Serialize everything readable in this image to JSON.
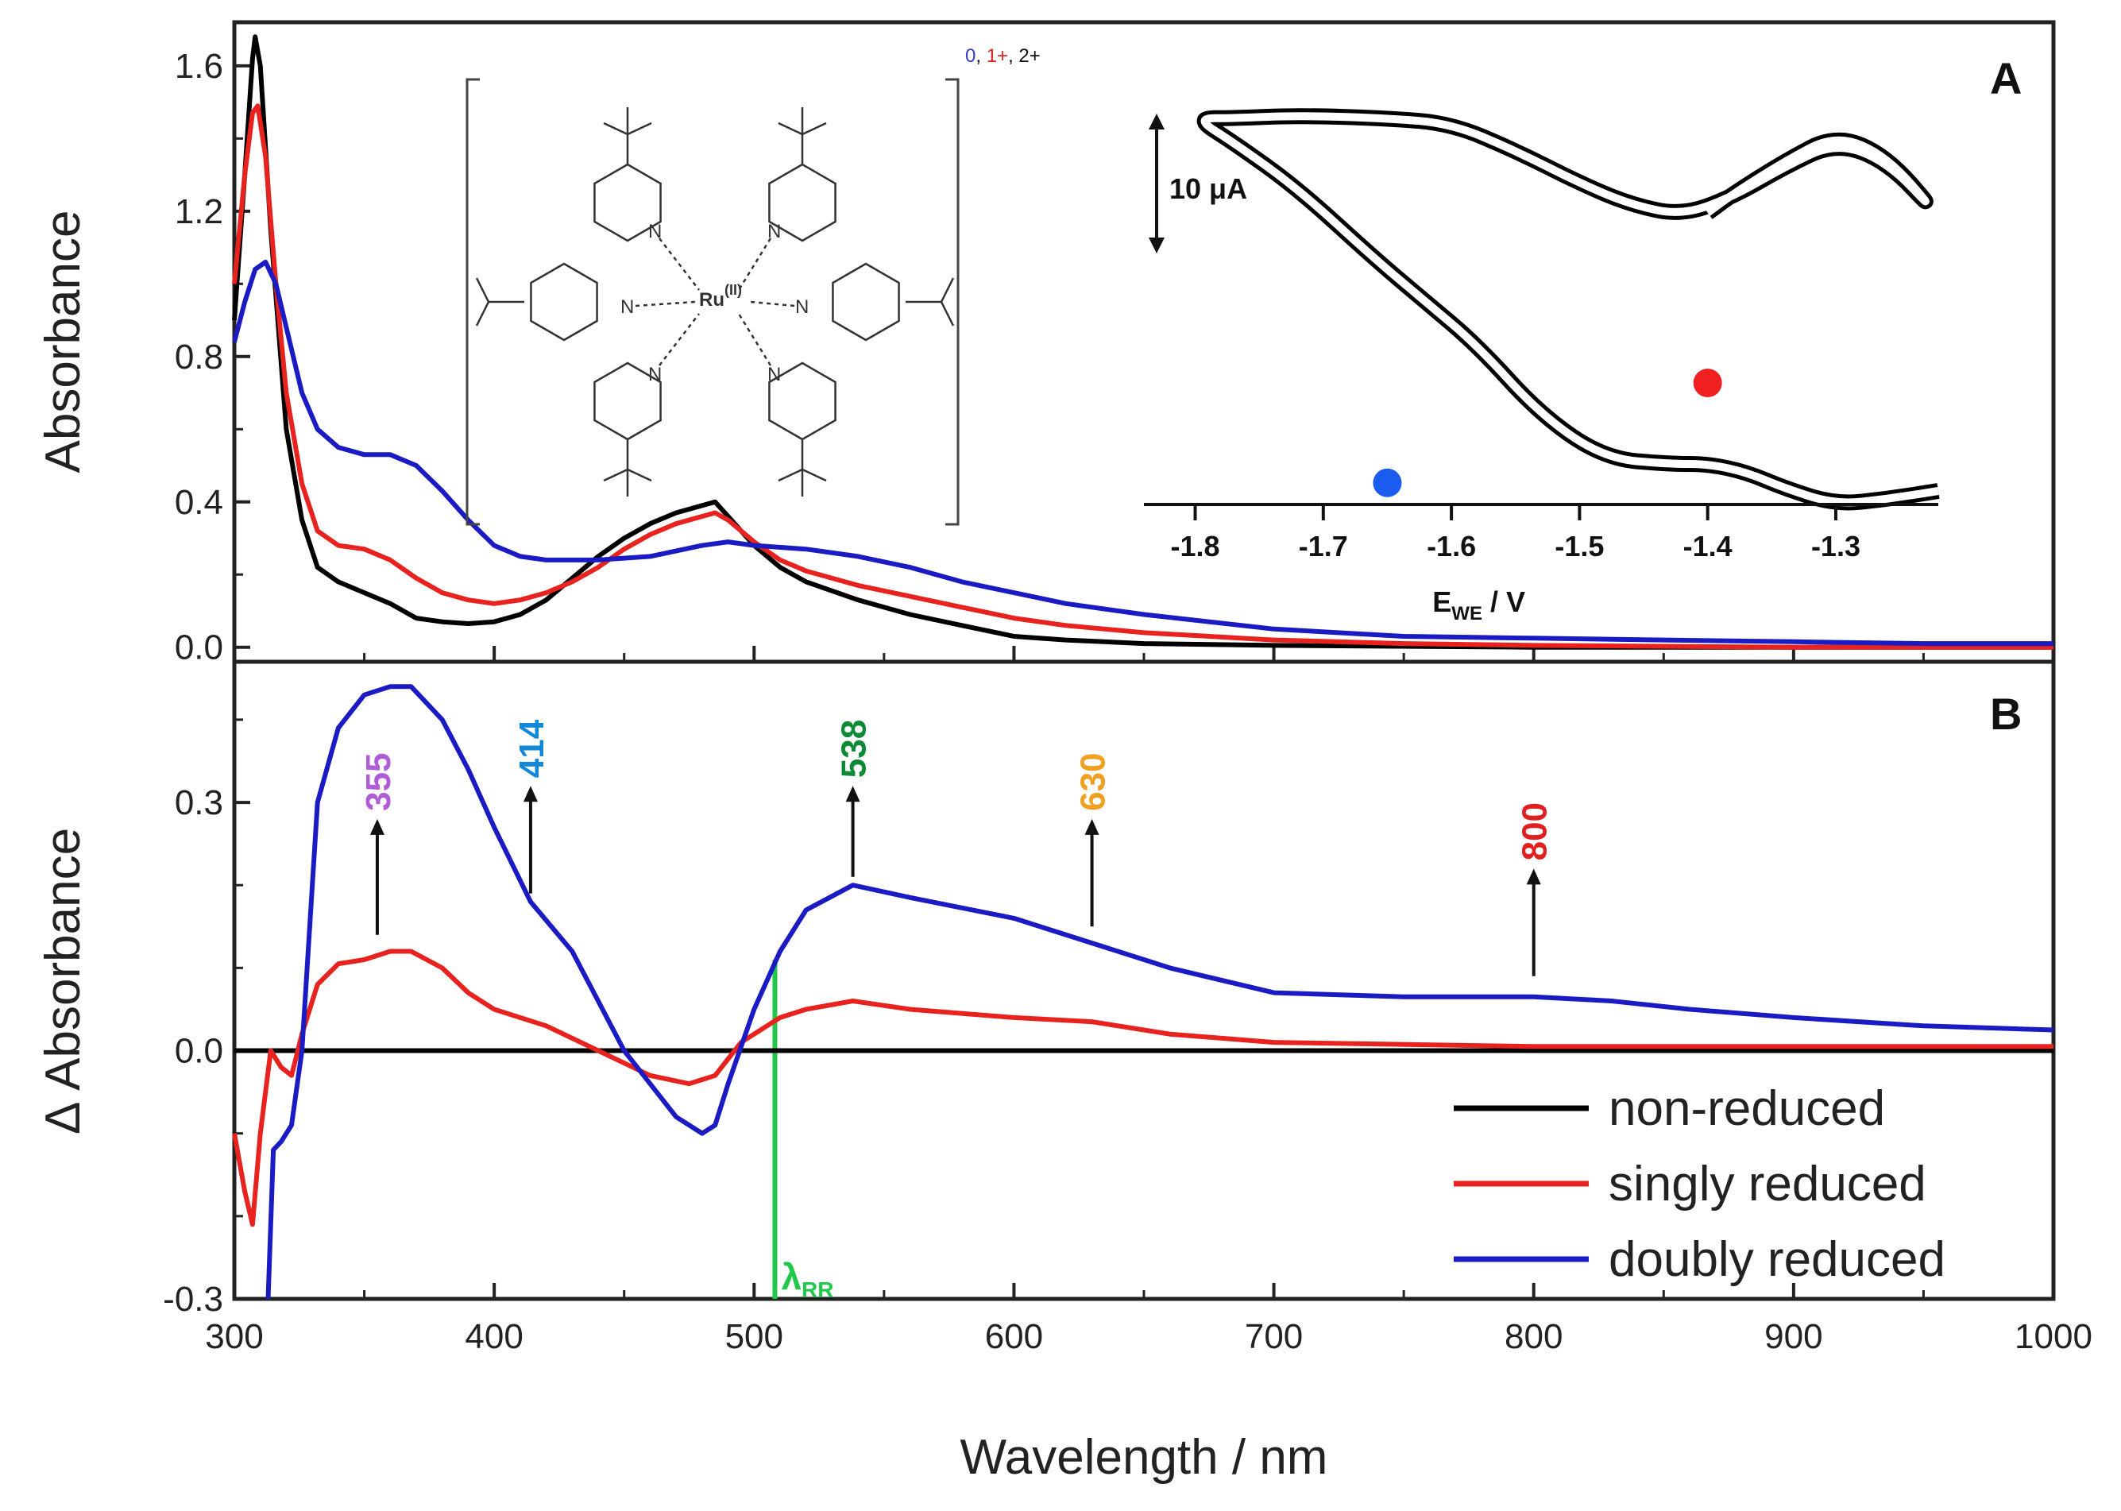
{
  "chart_data": [
    {
      "panel": "A",
      "type": "line",
      "panel_label": "A",
      "ylabel": "Absorbance",
      "xlabel": "Wavelength / nm",
      "xlim": [
        300,
        1000
      ],
      "ylim": [
        -0.04,
        1.72
      ],
      "x_ticks": [
        "300",
        "400",
        "500",
        "600",
        "700",
        "800",
        "900",
        "1000"
      ],
      "y_ticks": [
        "0.0",
        "0.4",
        "0.8",
        "1.2",
        "1.6"
      ],
      "y_tick_values": [
        0.0,
        0.4,
        0.8,
        1.2,
        1.6
      ],
      "series": [
        {
          "name": "non-reduced",
          "color": "#000000",
          "points": [
            [
              300,
              0.9
            ],
            [
              304,
              1.3
            ],
            [
              307,
              1.62
            ],
            [
              308,
              1.68
            ],
            [
              310,
              1.6
            ],
            [
              314,
              1.15
            ],
            [
              320,
              0.6
            ],
            [
              326,
              0.35
            ],
            [
              332,
              0.22
            ],
            [
              340,
              0.18
            ],
            [
              350,
              0.15
            ],
            [
              360,
              0.12
            ],
            [
              370,
              0.08
            ],
            [
              380,
              0.07
            ],
            [
              390,
              0.065
            ],
            [
              400,
              0.07
            ],
            [
              410,
              0.09
            ],
            [
              420,
              0.13
            ],
            [
              430,
              0.19
            ],
            [
              440,
              0.25
            ],
            [
              450,
              0.3
            ],
            [
              460,
              0.34
            ],
            [
              470,
              0.37
            ],
            [
              480,
              0.39
            ],
            [
              485,
              0.4
            ],
            [
              490,
              0.36
            ],
            [
              500,
              0.28
            ],
            [
              510,
              0.22
            ],
            [
              520,
              0.18
            ],
            [
              540,
              0.13
            ],
            [
              560,
              0.09
            ],
            [
              580,
              0.06
            ],
            [
              600,
              0.03
            ],
            [
              620,
              0.02
            ],
            [
              650,
              0.01
            ],
            [
              700,
              0.005
            ],
            [
              800,
              0.0
            ],
            [
              900,
              0.0
            ],
            [
              1000,
              0.0
            ]
          ]
        },
        {
          "name": "singly reduced",
          "color": "#e8221e",
          "points": [
            [
              300,
              1.0
            ],
            [
              304,
              1.3
            ],
            [
              307,
              1.47
            ],
            [
              309,
              1.49
            ],
            [
              312,
              1.35
            ],
            [
              316,
              1.0
            ],
            [
              320,
              0.7
            ],
            [
              326,
              0.45
            ],
            [
              332,
              0.32
            ],
            [
              340,
              0.28
            ],
            [
              350,
              0.27
            ],
            [
              360,
              0.24
            ],
            [
              370,
              0.19
            ],
            [
              380,
              0.15
            ],
            [
              390,
              0.13
            ],
            [
              400,
              0.12
            ],
            [
              410,
              0.13
            ],
            [
              420,
              0.15
            ],
            [
              430,
              0.18
            ],
            [
              440,
              0.22
            ],
            [
              450,
              0.27
            ],
            [
              460,
              0.31
            ],
            [
              470,
              0.34
            ],
            [
              480,
              0.36
            ],
            [
              485,
              0.37
            ],
            [
              490,
              0.35
            ],
            [
              500,
              0.29
            ],
            [
              510,
              0.24
            ],
            [
              520,
              0.21
            ],
            [
              540,
              0.17
            ],
            [
              560,
              0.14
            ],
            [
              580,
              0.11
            ],
            [
              600,
              0.08
            ],
            [
              620,
              0.06
            ],
            [
              650,
              0.04
            ],
            [
              700,
              0.02
            ],
            [
              750,
              0.01
            ],
            [
              800,
              0.005
            ],
            [
              900,
              0.0
            ],
            [
              1000,
              0.0
            ]
          ]
        },
        {
          "name": "doubly reduced",
          "color": "#1b1bc4",
          "points": [
            [
              300,
              0.84
            ],
            [
              304,
              0.95
            ],
            [
              308,
              1.04
            ],
            [
              312,
              1.06
            ],
            [
              316,
              1.0
            ],
            [
              320,
              0.88
            ],
            [
              326,
              0.7
            ],
            [
              332,
              0.6
            ],
            [
              340,
              0.55
            ],
            [
              350,
              0.53
            ],
            [
              360,
              0.53
            ],
            [
              370,
              0.5
            ],
            [
              380,
              0.43
            ],
            [
              390,
              0.35
            ],
            [
              400,
              0.28
            ],
            [
              410,
              0.25
            ],
            [
              420,
              0.24
            ],
            [
              440,
              0.24
            ],
            [
              460,
              0.25
            ],
            [
              480,
              0.28
            ],
            [
              490,
              0.29
            ],
            [
              500,
              0.28
            ],
            [
              520,
              0.27
            ],
            [
              540,
              0.25
            ],
            [
              560,
              0.22
            ],
            [
              580,
              0.18
            ],
            [
              600,
              0.15
            ],
            [
              620,
              0.12
            ],
            [
              650,
              0.09
            ],
            [
              700,
              0.05
            ],
            [
              750,
              0.03
            ],
            [
              800,
              0.025
            ],
            [
              850,
              0.02
            ],
            [
              900,
              0.015
            ],
            [
              950,
              0.01
            ],
            [
              1000,
              0.01
            ]
          ]
        }
      ]
    },
    {
      "panel": "B",
      "type": "line",
      "panel_label": "B",
      "ylabel": "Δ Absorbance",
      "xlabel": "Wavelength / nm",
      "xlim": [
        300,
        1000
      ],
      "ylim": [
        -0.3,
        0.47
      ],
      "x_ticks": [
        "300",
        "400",
        "500",
        "600",
        "700",
        "800",
        "900",
        "1000"
      ],
      "y_ticks": [
        "-0.3",
        "0.0",
        "0.3"
      ],
      "y_tick_values": [
        -0.3,
        0.0,
        0.3
      ],
      "series": [
        {
          "name": "non-reduced",
          "color": "#000000",
          "points": [
            [
              300,
              0.0
            ],
            [
              400,
              0.0
            ],
            [
              500,
              0.0
            ],
            [
              600,
              0.0
            ],
            [
              700,
              0.0
            ],
            [
              800,
              0.0
            ],
            [
              900,
              0.0
            ],
            [
              1000,
              0.0
            ]
          ]
        },
        {
          "name": "singly reduced",
          "color": "#e8221e",
          "points": [
            [
              300,
              -0.1
            ],
            [
              304,
              -0.17
            ],
            [
              307,
              -0.21
            ],
            [
              310,
              -0.1
            ],
            [
              314,
              0.0
            ],
            [
              318,
              -0.02
            ],
            [
              322,
              -0.03
            ],
            [
              326,
              0.02
            ],
            [
              332,
              0.08
            ],
            [
              340,
              0.105
            ],
            [
              350,
              0.11
            ],
            [
              360,
              0.12
            ],
            [
              368,
              0.12
            ],
            [
              380,
              0.1
            ],
            [
              390,
              0.07
            ],
            [
              400,
              0.05
            ],
            [
              420,
              0.03
            ],
            [
              440,
              0.0
            ],
            [
              460,
              -0.03
            ],
            [
              475,
              -0.04
            ],
            [
              485,
              -0.03
            ],
            [
              495,
              0.01
            ],
            [
              510,
              0.04
            ],
            [
              520,
              0.05
            ],
            [
              538,
              0.06
            ],
            [
              560,
              0.05
            ],
            [
              600,
              0.04
            ],
            [
              630,
              0.035
            ],
            [
              660,
              0.02
            ],
            [
              700,
              0.01
            ],
            [
              800,
              0.005
            ],
            [
              1000,
              0.005
            ]
          ]
        },
        {
          "name": "doubly reduced",
          "color": "#1b1bc4",
          "points": [
            [
              313,
              -0.3
            ],
            [
              315,
              -0.12
            ],
            [
              318,
              -0.11
            ],
            [
              322,
              -0.09
            ],
            [
              326,
              0.0
            ],
            [
              332,
              0.3
            ],
            [
              340,
              0.39
            ],
            [
              350,
              0.43
            ],
            [
              360,
              0.44
            ],
            [
              368,
              0.44
            ],
            [
              380,
              0.4
            ],
            [
              390,
              0.34
            ],
            [
              400,
              0.27
            ],
            [
              414,
              0.18
            ],
            [
              430,
              0.12
            ],
            [
              440,
              0.06
            ],
            [
              450,
              0.0
            ],
            [
              460,
              -0.04
            ],
            [
              470,
              -0.08
            ],
            [
              480,
              -0.1
            ],
            [
              485,
              -0.09
            ],
            [
              490,
              -0.04
            ],
            [
              500,
              0.05
            ],
            [
              510,
              0.12
            ],
            [
              520,
              0.17
            ],
            [
              538,
              0.2
            ],
            [
              560,
              0.185
            ],
            [
              600,
              0.16
            ],
            [
              630,
              0.13
            ],
            [
              660,
              0.1
            ],
            [
              700,
              0.07
            ],
            [
              750,
              0.065
            ],
            [
              800,
              0.065
            ],
            [
              830,
              0.06
            ],
            [
              860,
              0.05
            ],
            [
              900,
              0.04
            ],
            [
              950,
              0.03
            ],
            [
              1000,
              0.025
            ]
          ]
        }
      ],
      "peak_markers": [
        {
          "label": "355",
          "wavelength": 355,
          "color": "#b05bd8",
          "arrow_from": 0.14,
          "arrow_to": 0.28
        },
        {
          "label": "414",
          "wavelength": 414,
          "color": "#1188d8",
          "arrow_from": 0.19,
          "arrow_to": 0.32
        },
        {
          "label": "538",
          "wavelength": 538,
          "color": "#0d8a35",
          "arrow_from": 0.21,
          "arrow_to": 0.32
        },
        {
          "label": "630",
          "wavelength": 630,
          "color": "#f0a020",
          "arrow_from": 0.15,
          "arrow_to": 0.28
        },
        {
          "label": "800",
          "wavelength": 800,
          "color": "#e02020",
          "arrow_from": 0.09,
          "arrow_to": 0.22
        }
      ],
      "excitation_line": {
        "wavelength": 508,
        "color": "#22c84a",
        "label": "λ",
        "label_subscript": "RR",
        "y_from": -0.3,
        "y_to": 0.11
      },
      "legend": {
        "placement": "bottom-right",
        "entries": [
          "non-reduced",
          "singly reduced",
          "doubly reduced"
        ]
      }
    },
    {
      "panel": "A-inset",
      "type": "line",
      "xlabel": "E",
      "xlabel_subscript": "WE",
      "xlabel_unit": " / V",
      "xlim": [
        -1.84,
        -1.22
      ],
      "x_ticks": [
        "-1.8",
        "-1.7",
        "-1.6",
        "-1.5",
        "-1.4",
        "-1.3"
      ],
      "x_tick_values": [
        -1.8,
        -1.7,
        -1.6,
        -1.5,
        -1.4,
        -1.3
      ],
      "scale_bar": "10 μA",
      "series": [
        {
          "name": "outer scan",
          "color": "#000000",
          "points": [
            [
              -1.4,
              3.3
            ],
            [
              -1.38,
              4.0
            ],
            [
              -1.34,
              5.2
            ],
            [
              -1.3,
              6.2
            ],
            [
              -1.26,
              5.4
            ],
            [
              -1.22,
              3.2
            ],
            [
              -1.26,
              5.2
            ],
            [
              -1.3,
              5.9
            ],
            [
              -1.34,
              5.0
            ],
            [
              -1.38,
              3.9
            ],
            [
              -1.42,
              3.2
            ],
            [
              -1.46,
              3.6
            ],
            [
              -1.5,
              4.4
            ],
            [
              -1.55,
              5.6
            ],
            [
              -1.6,
              6.6
            ],
            [
              -1.65,
              6.8
            ],
            [
              -1.72,
              6.9
            ],
            [
              -1.77,
              6.8
            ],
            [
              -1.8,
              6.8
            ],
            [
              -1.77,
              5.9
            ],
            [
              -1.72,
              4.2
            ],
            [
              -1.66,
              1.6
            ],
            [
              -1.62,
              0.0
            ],
            [
              -1.58,
              -1.6
            ],
            [
              -1.53,
              -4.2
            ],
            [
              -1.48,
              -5.8
            ],
            [
              -1.43,
              -6.0
            ],
            [
              -1.4,
              -6.0
            ],
            [
              -1.37,
              -6.3
            ],
            [
              -1.34,
              -6.9
            ],
            [
              -1.3,
              -7.5
            ],
            [
              -1.26,
              -7.3
            ],
            [
              -1.22,
              -7.0
            ]
          ]
        }
      ],
      "markers": [
        {
          "name": "blue point",
          "x": -1.65,
          "color": "#1a5cf0"
        },
        {
          "name": "red point",
          "x": -1.4,
          "color": "#f02020"
        }
      ]
    }
  ],
  "structure": {
    "charge_prefix": "0",
    "charge_mid": "1+",
    "charge_suffix": "2+",
    "charge_sep": ", ",
    "charge_colors": [
      "#3b3bc4",
      "#e02020",
      "#111111"
    ],
    "metal": "Ru",
    "metal_ox": "(II)",
    "nitrogen": "N"
  }
}
